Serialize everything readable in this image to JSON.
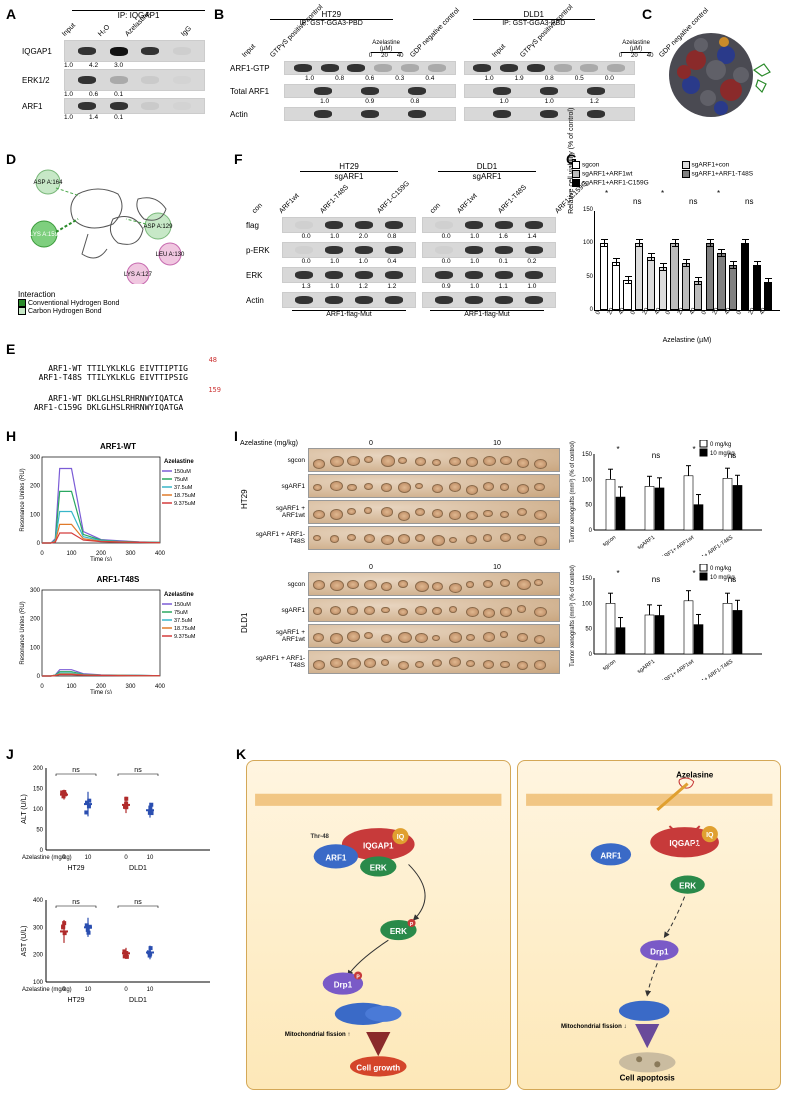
{
  "labels": {
    "A": "A",
    "B": "B",
    "C": "C",
    "D": "D",
    "E": "E",
    "F": "F",
    "G": "G",
    "H": "H",
    "I": "I",
    "J": "J",
    "K": "K"
  },
  "A": {
    "header_top": "IP: IQGAP1",
    "cols": [
      "Input",
      "H₂O",
      "Azelastine",
      "IgG"
    ],
    "rows": [
      "IQGAP1",
      "ERK1/2",
      "ARF1"
    ],
    "quants": {
      "IQGAP1": [
        "1.0",
        "4.2",
        "3.0",
        ""
      ],
      "ERK1/2": [
        "1.0",
        "0.6",
        "0.1",
        ""
      ],
      "ARF1": [
        "1.0",
        "1.4",
        "0.1",
        ""
      ]
    }
  },
  "B": {
    "cells": [
      "HT29",
      "DLD1"
    ],
    "ip": "IP: GST-GGA3-PBD",
    "cols": [
      "Input",
      "GTPγS positive control",
      "0",
      "20",
      "40",
      "GDP negative control"
    ],
    "colgroup": "Azelastine (µM)",
    "rows": [
      "ARF1-GTP",
      "Total ARF1",
      "Actin"
    ],
    "quants_ht29": {
      "ARF1-GTP": [
        "1.0",
        "0.8",
        "0.6",
        "0.3",
        "0.4"
      ],
      "Total ARF1": [
        "1.0",
        "0.9",
        "0.8"
      ]
    },
    "quants_dld1": {
      "ARF1-GTP": [
        "1.0",
        "1.9",
        "0.8",
        "0.5",
        "0.0"
      ],
      "Total ARF1": [
        "1.0",
        "1.0",
        "1.2"
      ]
    }
  },
  "C": {
    "caption": ""
  },
  "D": {
    "residues": [
      "ASP A:164",
      "LYS A:159",
      "ASP A:129",
      "LEU A:130",
      "LYS A:127"
    ],
    "legend_title": "Interaction",
    "legend": [
      "Conventional Hydrogen Bond",
      "Carbon Hydrogen Bond"
    ]
  },
  "E": {
    "seqs": [
      {
        "name": "ARF1-WT",
        "seq": "TTILYKLKLG EIVTTIPTIG",
        "mark": "48"
      },
      {
        "name": "ARF1-T48S",
        "seq": "TTILYKLKLG EIVTTIPSIG"
      },
      {
        "name": "ARF1-WT",
        "seq": "DKLGLHSLRHRNWYIQATCA",
        "mark": "159"
      },
      {
        "name": "ARF1-C159G",
        "seq": "DKLGLHSLRHRNWYIQATGA"
      }
    ]
  },
  "F": {
    "cells": [
      "HT29",
      "DLD1"
    ],
    "sg": "sgARF1",
    "cols": [
      "con",
      "ARF1wt",
      "ARF1-T48S",
      "ARF1-C159G"
    ],
    "rows": [
      "flag",
      "p-ERK",
      "ERK",
      "Actin"
    ],
    "footer": "ARF1-flag-Mut",
    "quants_ht29": {
      "flag": [
        "0.0",
        "1.0",
        "2.0",
        "0.8"
      ],
      "p-ERK": [
        "0.0",
        "1.0",
        "1.0",
        "0.4"
      ],
      "ERK": [
        "1.3",
        "1.0",
        "1.2",
        "1.2"
      ]
    },
    "quants_dld1": {
      "flag": [
        "0.0",
        "1.0",
        "1.6",
        "1.4"
      ],
      "p-ERK": [
        "0.0",
        "1.0",
        "0.1",
        "0.2"
      ],
      "ERK": [
        "0.9",
        "1.0",
        "1.1",
        "1.0"
      ]
    }
  },
  "G": {
    "legend": [
      "sgcon",
      "sgARF1+con",
      "sgARF1+ARF1wt",
      "sgARF1+ARF1-T48S",
      "sgARF1+ARF1-C159G"
    ],
    "legend_colors": [
      "#ffffff",
      "#dcdcdc",
      "#bcbcbc",
      "#808080",
      "#000000"
    ],
    "ylabel": "Relative cell viability (% of control)",
    "xlabel": "Azelastine (µM)",
    "ylim": [
      0,
      150
    ],
    "ytick_step": 50,
    "x_doses": [
      "0",
      "20",
      "40"
    ],
    "groups": [
      "sgcon",
      "sgARF1+con",
      "sgARF1+ARF1wt",
      "sgARF1+ARF1-T48S",
      "sgARF1+ARF1-C159G"
    ],
    "data": {
      "sgcon": [
        100,
        72,
        45
      ],
      "sgARF1+con": [
        100,
        80,
        65
      ],
      "sgARF1+ARF1wt": [
        100,
        70,
        43
      ],
      "sgARF1+ARF1-T48S": [
        100,
        86,
        68
      ],
      "sgARF1+ARF1-C159G": [
        100,
        68,
        42
      ]
    },
    "err": 12,
    "sig": [
      {
        "text": "*"
      },
      {
        "text": "ns"
      },
      {
        "text": "*"
      },
      {
        "text": "ns"
      },
      {
        "text": "*"
      },
      {
        "text": "ns"
      }
    ]
  },
  "H": {
    "charts": [
      {
        "title": "ARF1-WT",
        "drug": "Azelastine",
        "concs": [
          "150uM",
          "75uM",
          "37.5uM",
          "18.75uM",
          "9.375uM"
        ],
        "colors": [
          "#7b5cd6",
          "#2aa861",
          "#38b6c9",
          "#e07a2a",
          "#d43c3c"
        ],
        "ylabel": "Resonance Unites (RU)",
        "xlabel": "Time (s)",
        "xlim": [
          0,
          400
        ],
        "ylim": [
          0,
          300
        ],
        "curves": [
          [
            0,
            0,
            15,
            260,
            260,
            40,
            12,
            8,
            4,
            2
          ],
          [
            0,
            0,
            10,
            180,
            180,
            30,
            10,
            6,
            3,
            2
          ],
          [
            0,
            0,
            8,
            110,
            110,
            22,
            8,
            5,
            2,
            1
          ],
          [
            0,
            0,
            5,
            65,
            65,
            15,
            6,
            4,
            2,
            1
          ],
          [
            0,
            0,
            3,
            35,
            35,
            10,
            5,
            3,
            2,
            1
          ]
        ]
      },
      {
        "title": "ARF1-T48S",
        "drug": "Azelastine",
        "concs": [
          "150uM",
          "75uM",
          "37.5uM",
          "18.75uM",
          "9.375uM"
        ],
        "colors": [
          "#7b5cd6",
          "#2aa861",
          "#38b6c9",
          "#e07a2a",
          "#d43c3c"
        ],
        "ylabel": "Resonance Unites (RU)",
        "xlabel": "Time (s)",
        "xlim": [
          0,
          400
        ],
        "ylim": [
          0,
          300
        ],
        "curves": [
          [
            0,
            0,
            4,
            22,
            22,
            8,
            4,
            3,
            2,
            1
          ],
          [
            0,
            0,
            3,
            15,
            15,
            6,
            3,
            2,
            2,
            1
          ],
          [
            0,
            0,
            2,
            10,
            10,
            5,
            3,
            2,
            1,
            1
          ],
          [
            0,
            0,
            2,
            7,
            7,
            4,
            2,
            2,
            1,
            1
          ],
          [
            0,
            0,
            1,
            5,
            5,
            3,
            2,
            1,
            1,
            1
          ]
        ]
      }
    ]
  },
  "I": {
    "dose_header": "Azelastine (mg/kg)",
    "doses": [
      "0",
      "10"
    ],
    "cells": [
      "HT29",
      "DLD1"
    ],
    "rows": [
      "sgcon",
      "sgARF1",
      "sgARF1 + ARF1wt",
      "sgARF1 + ARF1-T48S"
    ],
    "bar_legend": [
      "0 mg/kg",
      "10 mg/kg"
    ],
    "bar_colors": [
      "#ffffff",
      "#000000"
    ],
    "bar_ylabel": "Tumor xenografts (mm³) (% of control)",
    "ylim": [
      0,
      150
    ],
    "ytick_step": 50,
    "xcats": [
      "sgcon",
      "sgARF1",
      "sgARF1+ ARF1wt",
      "sgARF1+ ARF1-T48S"
    ],
    "ht29": {
      "0": [
        100,
        86,
        107,
        102
      ],
      "10": [
        65,
        83,
        50,
        88
      ]
    },
    "dld1": {
      "0": [
        100,
        77,
        105,
        100
      ],
      "10": [
        52,
        76,
        58,
        86
      ]
    },
    "err": 20,
    "sig": [
      "*",
      "ns",
      "*",
      "ns",
      "*"
    ]
  },
  "J": {
    "ylabels": [
      "ALT (U/L)",
      "AST (U/L)"
    ],
    "xlabel": "Azelastine (mg/kg)",
    "xticks": [
      "0",
      "10",
      "0",
      "10"
    ],
    "xgroups": [
      "HT29",
      "DLD1"
    ],
    "alt_ylim": [
      0,
      200
    ],
    "alt_ytick_step": 50,
    "ast_ylim": [
      100,
      400
    ],
    "ast_ytick_step": 100,
    "ns": "ns",
    "colors": [
      "#b02a2a",
      "#2a4eb0"
    ],
    "alt": {
      "HT29": {
        "0": [
          135,
          12
        ],
        "10": [
          112,
          30
        ]
      },
      "DLD1": {
        "0": [
          110,
          20
        ],
        "10": [
          97,
          18
        ]
      }
    },
    "ast": {
      "HT29": {
        "0": [
          285,
          42
        ],
        "10": [
          300,
          35
        ]
      },
      "DLD1": {
        "0": [
          205,
          20
        ],
        "10": [
          208,
          25
        ]
      }
    }
  },
  "K": {
    "drug": "Azelasine",
    "left_events": [
      "IQGAP1",
      "ARF1",
      "ERK",
      "Drp1",
      "Mitochondrial fission ↑",
      "Cell growth"
    ],
    "right_events": [
      "IQGAP1",
      "ARF1",
      "ERK",
      "Drp1",
      "Mitochondrial fission ↓",
      "Cell apoptosis"
    ],
    "thr": "Thr-48",
    "iq": "IQ"
  }
}
